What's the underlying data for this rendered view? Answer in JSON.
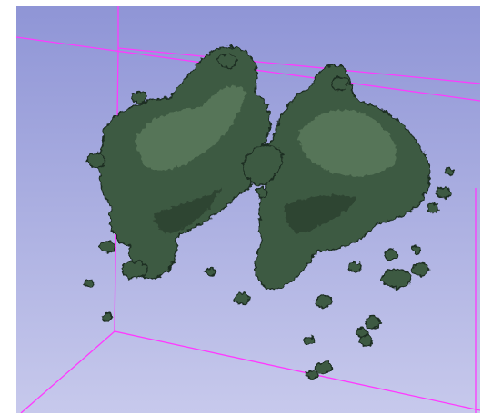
{
  "view": {
    "background_top_color": "#8f95d6",
    "background_bottom_color": "#c7c9ec",
    "frame_color": "#ffffff"
  },
  "bounding_box": {
    "color": "#ff39ff"
  },
  "rendered_object": {
    "color": "#3e5a42",
    "highlight_color": "#6c8a6b",
    "shadow_color": "#1f2e23"
  }
}
